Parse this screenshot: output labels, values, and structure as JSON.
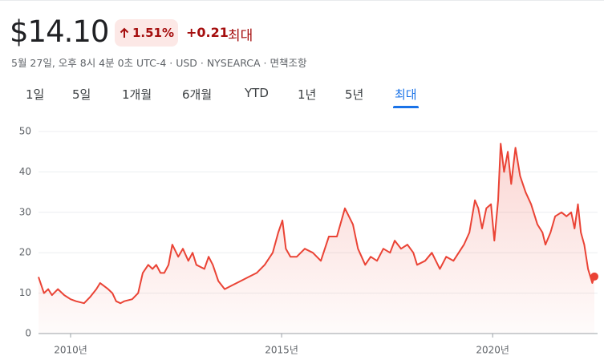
{
  "header": {
    "price": "$14.10",
    "change_percent": "1.51%",
    "change": "+0.21",
    "period": "최대",
    "meta": "5월 27일, 오후 8시 4분 0초 UTC-4 · USD · NYSEARCA · 면책조항"
  },
  "tabs": [
    "1일",
    "5일",
    "1개월",
    "6개월",
    "YTD",
    "1년",
    "5년",
    "최대"
  ],
  "active_tab": 7,
  "chart_data": {
    "type": "line",
    "color": "#ea4335",
    "grid": true,
    "x": [
      2009.24,
      2009.37,
      2009.47,
      2009.56,
      2009.7,
      2009.85,
      2010.0,
      2010.13,
      2010.32,
      2010.46,
      2010.61,
      2010.7,
      2010.89,
      2010.99,
      2011.08,
      2011.18,
      2011.27,
      2011.46,
      2011.6,
      2011.71,
      2011.84,
      2011.94,
      2012.03,
      2012.13,
      2012.22,
      2012.32,
      2012.41,
      2012.55,
      2012.66,
      2012.79,
      2012.89,
      2012.98,
      2013.17,
      2013.27,
      2013.37,
      2013.5,
      2013.65,
      2013.84,
      2014.03,
      2014.22,
      2014.41,
      2014.6,
      2014.79,
      2014.92,
      2015.02,
      2015.1,
      2015.21,
      2015.36,
      2015.55,
      2015.74,
      2015.93,
      2016.12,
      2016.31,
      2016.5,
      2016.69,
      2016.81,
      2016.98,
      2017.11,
      2017.26,
      2017.41,
      2017.57,
      2017.68,
      2017.83,
      2017.98,
      2018.12,
      2018.21,
      2018.4,
      2018.56,
      2018.75,
      2018.9,
      2019.07,
      2019.32,
      2019.45,
      2019.58,
      2019.66,
      2019.75,
      2019.85,
      2019.96,
      2020.04,
      2020.13,
      2020.19,
      2020.27,
      2020.36,
      2020.44,
      2020.54,
      2020.65,
      2020.78,
      2020.91,
      2021.06,
      2021.18,
      2021.25,
      2021.37,
      2021.48,
      2021.63,
      2021.75,
      2021.86,
      2021.94,
      2022.02,
      2022.09,
      2022.17,
      2022.26,
      2022.36,
      2022.41
    ],
    "values": [
      14,
      10,
      11,
      9.5,
      11,
      9.5,
      8.5,
      8,
      7.5,
      9,
      11,
      12.5,
      11,
      10,
      8,
      7.5,
      8,
      8.5,
      10,
      15,
      17,
      16,
      17,
      15,
      15,
      17,
      22,
      19,
      21,
      18,
      20,
      17,
      16,
      19,
      17,
      13,
      11,
      12,
      13,
      14,
      15,
      17,
      20,
      25,
      28,
      21,
      19,
      19,
      21,
      20,
      18,
      24,
      24,
      31,
      27,
      21,
      17,
      19,
      18,
      21,
      20,
      23,
      21,
      22,
      20,
      17,
      18,
      20,
      16,
      19,
      18,
      22,
      25,
      33,
      31,
      26,
      31,
      32,
      23,
      33,
      47,
      40,
      45,
      37,
      46,
      39,
      35,
      32,
      27,
      25,
      22,
      25,
      29,
      30,
      29,
      30,
      26,
      32,
      25,
      22,
      16,
      12.5,
      14.1
    ],
    "xlim": [
      2009.24,
      2022.41
    ],
    "xticks": [
      {
        "value": 2010,
        "label": "2010년"
      },
      {
        "value": 2015,
        "label": "2015년"
      },
      {
        "value": 2020,
        "label": "2020년"
      }
    ],
    "ylim": [
      0,
      50
    ],
    "yticks": [
      0,
      10,
      20,
      30,
      40,
      50
    ]
  }
}
